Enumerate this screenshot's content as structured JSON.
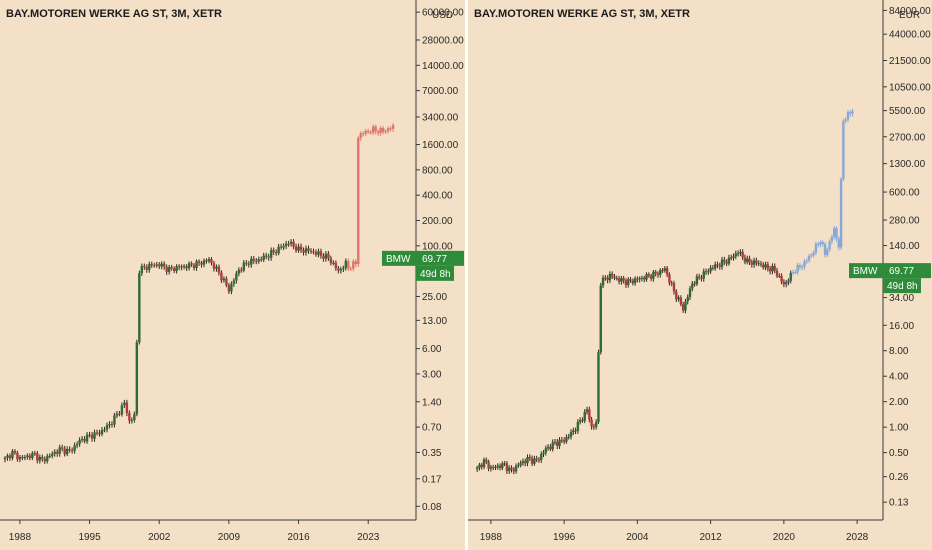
{
  "colors": {
    "background": "#f3e0c6",
    "candle_body": "#2f6b30",
    "candle_wick": "#2a2a2a",
    "candle_down": "#b2393b",
    "projection_red": "#e0766b",
    "projection_blue": "#88a8d8",
    "badge_green": "#2e8b3a"
  },
  "chart_data": [
    {
      "type": "candlestick",
      "title": "BAY.MOTOREN WERKE AG ST, 3M, XETR",
      "currency": "USD",
      "scale": "log",
      "ylim": [
        0.055,
        75000
      ],
      "xlim": [
        1986,
        2027.5
      ],
      "y_ticks": [
        "60000.00",
        "28000.00",
        "14000.00",
        "7000.00",
        "3400.00",
        "1600.00",
        "800.00",
        "400.00",
        "200.00",
        "100.00",
        "25.00",
        "13.00",
        "6.00",
        "3.00",
        "1.40",
        "0.70",
        "0.35",
        "0.17",
        "0.08"
      ],
      "x_ticks": [
        "1988",
        "1995",
        "2002",
        "2009",
        "2016",
        "2023"
      ],
      "price_label": {
        "symbol": "BMW",
        "value": "69.77",
        "countdown": "49d 8h",
        "y": 70
      },
      "series": [
        {
          "kind": "history",
          "points": [
            [
              1986.5,
              0.29
            ],
            [
              1987.2,
              0.35
            ],
            [
              1988,
              0.3
            ],
            [
              1989.5,
              0.33
            ],
            [
              1990.2,
              0.28
            ],
            [
              1991,
              0.32
            ],
            [
              1992,
              0.38
            ],
            [
              1993,
              0.36
            ],
            [
              1994,
              0.48
            ],
            [
              1995,
              0.55
            ],
            [
              1996,
              0.6
            ],
            [
              1997,
              0.75
            ],
            [
              1997.8,
              1.0
            ],
            [
              1998.5,
              1.35
            ],
            [
              1999,
              0.82
            ],
            [
              1999.5,
              0.95
            ],
            [
              2000,
              52
            ],
            [
              2001,
              58
            ],
            [
              2002,
              60
            ],
            [
              2003,
              52
            ],
            [
              2004,
              56
            ],
            [
              2005,
              58
            ],
            [
              2006,
              62
            ],
            [
              2007,
              68
            ],
            [
              2008,
              48
            ],
            [
              2009,
              30
            ],
            [
              2010,
              52
            ],
            [
              2011,
              65
            ],
            [
              2012,
              68
            ],
            [
              2013,
              78
            ],
            [
              2014,
              92
            ],
            [
              2015,
              110
            ],
            [
              2016,
              90
            ],
            [
              2017,
              88
            ],
            [
              2018,
              80
            ],
            [
              2019,
              72
            ],
            [
              2020,
              50
            ],
            [
              2020.8,
              62
            ]
          ]
        },
        {
          "kind": "projection",
          "points": [
            [
              2021,
              55
            ],
            [
              2021.5,
              60
            ],
            [
              2021.8,
              62
            ],
            [
              2022.0,
              2000
            ],
            [
              2022.5,
              2200
            ],
            [
              2023.5,
              2400
            ],
            [
              2024.5,
              2300
            ],
            [
              2025.5,
              2600
            ]
          ]
        }
      ]
    },
    {
      "type": "candlestick",
      "title": "BAY.MOTOREN WERKE AG ST, 3M, XETR",
      "currency": "EUR",
      "scale": "log",
      "ylim": [
        0.08,
        100000
      ],
      "xlim": [
        1985.5,
        2030.5
      ],
      "y_ticks": [
        "84000.00",
        "44000.00",
        "21500.00",
        "10500.00",
        "5500.00",
        "2700.00",
        "1300.00",
        "600.00",
        "280.00",
        "140.00",
        "34.00",
        "16.00",
        "8.00",
        "4.00",
        "2.00",
        "1.00",
        "0.50",
        "0.26",
        "0.13"
      ],
      "x_ticks": [
        "1988",
        "1996",
        "2004",
        "2012",
        "2020",
        "2028"
      ],
      "price_label": {
        "symbol": "BMW",
        "value": "69.77",
        "countdown": "49d 8h",
        "y": 69.77
      },
      "series": [
        {
          "kind": "history",
          "points": [
            [
              1986.5,
              0.32
            ],
            [
              1987.2,
              0.4
            ],
            [
              1988,
              0.33
            ],
            [
              1989.5,
              0.36
            ],
            [
              1990.2,
              0.3
            ],
            [
              1991,
              0.36
            ],
            [
              1992,
              0.42
            ],
            [
              1993,
              0.4
            ],
            [
              1994,
              0.55
            ],
            [
              1995,
              0.65
            ],
            [
              1996,
              0.7
            ],
            [
              1997,
              0.9
            ],
            [
              1997.8,
              1.2
            ],
            [
              1998.5,
              1.6
            ],
            [
              1999,
              1.0
            ],
            [
              1999.5,
              1.1
            ],
            [
              2000,
              52
            ],
            [
              2001,
              62
            ],
            [
              2002,
              55
            ],
            [
              2003,
              52
            ],
            [
              2004,
              56
            ],
            [
              2005,
              60
            ],
            [
              2006,
              65
            ],
            [
              2007,
              74
            ],
            [
              2008,
              40
            ],
            [
              2009,
              25
            ],
            [
              2010,
              50
            ],
            [
              2011,
              62
            ],
            [
              2012,
              75
            ],
            [
              2013,
              85
            ],
            [
              2014,
              95
            ],
            [
              2015,
              118
            ],
            [
              2016,
              90
            ],
            [
              2017,
              88
            ],
            [
              2018,
              78
            ],
            [
              2019,
              72
            ],
            [
              2020,
              48
            ],
            [
              2020.8,
              62
            ]
          ]
        },
        {
          "kind": "projection",
          "points": [
            [
              2021,
              70
            ],
            [
              2022,
              82
            ],
            [
              2023,
              110
            ],
            [
              2024,
              165
            ],
            [
              2024.5,
              110
            ],
            [
              2025.5,
              215
            ],
            [
              2026,
              140
            ],
            [
              2026.5,
              4300
            ],
            [
              2027,
              4900
            ],
            [
              2027.5,
              5500
            ]
          ]
        }
      ]
    }
  ]
}
